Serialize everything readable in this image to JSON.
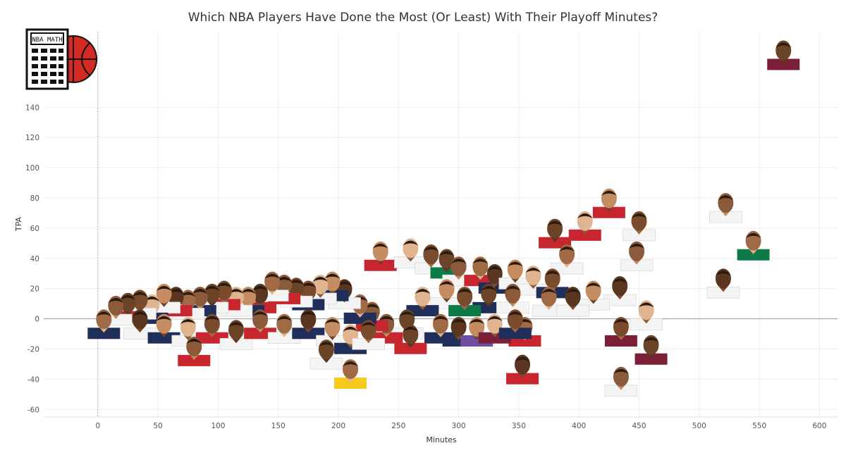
{
  "title": "Which NBA Players Have Done the Most (Or Least) With Their Playoff Minutes?",
  "logo": {
    "screen_text": "NBA MATH",
    "name": "NBA Math calculator and basketball logo"
  },
  "colors": {
    "jersey_red": "#c8262e",
    "jersey_wine": "#7a1f35",
    "jersey_green": "#0e7a47",
    "jersey_navy": "#1f2f5a",
    "jersey_white": "#f4f4f4",
    "jersey_gold": "#f7c91c",
    "grid": "#ececec",
    "zero_line": "#9a9a9a"
  },
  "chart_data": {
    "type": "scatter",
    "title": "Which NBA Players Have Done the Most (Or Least) With Their Playoff Minutes?",
    "xlabel": "Minutes",
    "ylabel": "TPA",
    "xlim": [
      -45,
      615
    ],
    "ylim": [
      -65,
      190
    ],
    "x_ticks": [
      0,
      50,
      100,
      150,
      200,
      250,
      300,
      350,
      400,
      450,
      500,
      550,
      600
    ],
    "y_ticks": [
      -60,
      -40,
      -20,
      0,
      20,
      40,
      60,
      80,
      100,
      120,
      140
    ],
    "grid": true,
    "zero_line": true,
    "marker": "player headshot",
    "points": [
      {
        "x": 570,
        "y": 173,
        "jersey": "wine"
      },
      {
        "x": 522,
        "y": 72,
        "jersey": "white"
      },
      {
        "x": 545,
        "y": 47,
        "jersey": "green"
      },
      {
        "x": 520,
        "y": 22,
        "jersey": "white"
      },
      {
        "x": 425,
        "y": 75,
        "jersey": "red"
      },
      {
        "x": 405,
        "y": 60,
        "jersey": "red"
      },
      {
        "x": 450,
        "y": 60,
        "jersey": "white"
      },
      {
        "x": 380,
        "y": 55,
        "jersey": "red"
      },
      {
        "x": 448,
        "y": 40,
        "jersey": "white"
      },
      {
        "x": 390,
        "y": 38,
        "jersey": "white"
      },
      {
        "x": 434,
        "y": 17,
        "jersey": "white"
      },
      {
        "x": 412,
        "y": 14,
        "jersey": "white"
      },
      {
        "x": 456,
        "y": 1,
        "jersey": "white"
      },
      {
        "x": 435,
        "y": -10,
        "jersey": "wine"
      },
      {
        "x": 460,
        "y": -22,
        "jersey": "wine"
      },
      {
        "x": 435,
        "y": -43,
        "jersey": "white"
      },
      {
        "x": 355,
        "y": -10,
        "jersey": "red"
      },
      {
        "x": 353,
        "y": -35,
        "jersey": "red"
      },
      {
        "x": 235,
        "y": 40,
        "jersey": "red"
      },
      {
        "x": 260,
        "y": 42,
        "jersey": "white"
      },
      {
        "x": 277,
        "y": 38,
        "jersey": "white"
      },
      {
        "x": 290,
        "y": 35,
        "jersey": "green"
      },
      {
        "x": 300,
        "y": 30,
        "jersey": "white"
      },
      {
        "x": 318,
        "y": 30,
        "jersey": "red"
      },
      {
        "x": 330,
        "y": 25,
        "jersey": "navy"
      },
      {
        "x": 347,
        "y": 28,
        "jersey": "white"
      },
      {
        "x": 362,
        "y": 24,
        "jersey": "white"
      },
      {
        "x": 378,
        "y": 22,
        "jersey": "navy"
      },
      {
        "x": 325,
        "y": 12,
        "jersey": "navy"
      },
      {
        "x": 345,
        "y": 12,
        "jersey": "white"
      },
      {
        "x": 375,
        "y": 10,
        "jersey": "white"
      },
      {
        "x": 395,
        "y": 10,
        "jersey": "white"
      },
      {
        "x": 290,
        "y": 15,
        "jersey": "white"
      },
      {
        "x": 270,
        "y": 10,
        "jersey": "navy"
      },
      {
        "x": 305,
        "y": 10,
        "jersey": "green"
      },
      {
        "x": 257,
        "y": -5,
        "jersey": "white"
      },
      {
        "x": 240,
        "y": -8,
        "jersey": "red"
      },
      {
        "x": 285,
        "y": -8,
        "jersey": "navy"
      },
      {
        "x": 300,
        "y": -10,
        "jersey": "navy"
      },
      {
        "x": 315,
        "y": -10,
        "jersey": "purple"
      },
      {
        "x": 330,
        "y": -8,
        "jersey": "wine"
      },
      {
        "x": 347,
        "y": -5,
        "jersey": "navy"
      },
      {
        "x": 260,
        "y": -15,
        "jersey": "red"
      },
      {
        "x": 228,
        "y": 0,
        "jersey": "red"
      },
      {
        "x": 218,
        "y": 5,
        "jersey": "navy"
      },
      {
        "x": 205,
        "y": 15,
        "jersey": "white"
      },
      {
        "x": 195,
        "y": 20,
        "jersey": "navy"
      },
      {
        "x": 185,
        "y": 18,
        "jersey": "white"
      },
      {
        "x": 175,
        "y": 14,
        "jersey": "navy"
      },
      {
        "x": 165,
        "y": 16,
        "jersey": "white"
      },
      {
        "x": 155,
        "y": 18,
        "jersey": "red"
      },
      {
        "x": 145,
        "y": 20,
        "jersey": "white"
      },
      {
        "x": 135,
        "y": 12,
        "jersey": "red"
      },
      {
        "x": 125,
        "y": 10,
        "jersey": "navy"
      },
      {
        "x": 115,
        "y": 10,
        "jersey": "white"
      },
      {
        "x": 105,
        "y": 14,
        "jersey": "red"
      },
      {
        "x": 95,
        "y": 12,
        "jersey": "white"
      },
      {
        "x": 85,
        "y": 10,
        "jersey": "navy"
      },
      {
        "x": 75,
        "y": 8,
        "jersey": "white"
      },
      {
        "x": 65,
        "y": 10,
        "jersey": "red"
      },
      {
        "x": 55,
        "y": 12,
        "jersey": "white"
      },
      {
        "x": 45,
        "y": 5,
        "jersey": "navy"
      },
      {
        "x": 35,
        "y": 8,
        "jersey": "white"
      },
      {
        "x": 25,
        "y": 6,
        "jersey": "red"
      },
      {
        "x": 15,
        "y": 4,
        "jersey": "white"
      },
      {
        "x": 5,
        "y": -5,
        "jersey": "navy"
      },
      {
        "x": 35,
        "y": -5,
        "jersey": "white"
      },
      {
        "x": 55,
        "y": -8,
        "jersey": "navy"
      },
      {
        "x": 75,
        "y": -10,
        "jersey": "white"
      },
      {
        "x": 95,
        "y": -8,
        "jersey": "red"
      },
      {
        "x": 115,
        "y": -12,
        "jersey": "white"
      },
      {
        "x": 135,
        "y": -5,
        "jersey": "red"
      },
      {
        "x": 155,
        "y": -8,
        "jersey": "white"
      },
      {
        "x": 175,
        "y": -5,
        "jersey": "navy"
      },
      {
        "x": 195,
        "y": -10,
        "jersey": "white"
      },
      {
        "x": 210,
        "y": -15,
        "jersey": "navy"
      },
      {
        "x": 225,
        "y": -12,
        "jersey": "white"
      },
      {
        "x": 190,
        "y": -25,
        "jersey": "white"
      },
      {
        "x": 80,
        "y": -23,
        "jersey": "red"
      },
      {
        "x": 210,
        "y": -38,
        "jersey": "gold"
      }
    ]
  }
}
